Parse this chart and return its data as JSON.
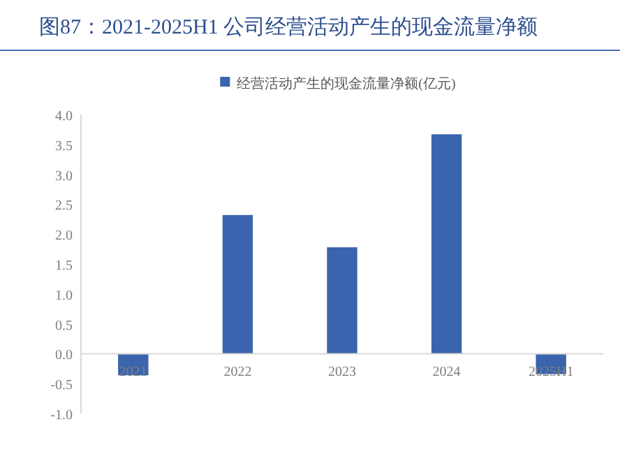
{
  "chart_data": {
    "type": "bar",
    "title": "图87：2021-2025H1 公司经营活动产生的现金流量净额",
    "categories": [
      "2021",
      "2022",
      "2023",
      "2024",
      "2025H1"
    ],
    "series": [
      {
        "name": "经营活动产生的现金流量净额(亿元)",
        "color": "#3a64ad",
        "values": [
          -0.36,
          2.32,
          1.78,
          3.67,
          -0.34
        ]
      }
    ],
    "ylim": [
      -1.0,
      4.0
    ],
    "yticks": [
      {
        "value": -1.0,
        "label": "-1.0"
      },
      {
        "value": -0.5,
        "label": "-0.5"
      },
      {
        "value": 0,
        "label": "0.0"
      },
      {
        "value": 0.5,
        "label": "0.5"
      },
      {
        "value": 1.0,
        "label": "1.0"
      },
      {
        "value": 1.5,
        "label": "1.5"
      },
      {
        "value": 2.0,
        "label": "2.0"
      },
      {
        "value": 2.5,
        "label": "2.5"
      },
      {
        "value": 3.0,
        "label": "3.0"
      },
      {
        "value": 3.5,
        "label": "3.5"
      },
      {
        "value": 4.0,
        "label": "4.0"
      }
    ],
    "legend": "top"
  }
}
